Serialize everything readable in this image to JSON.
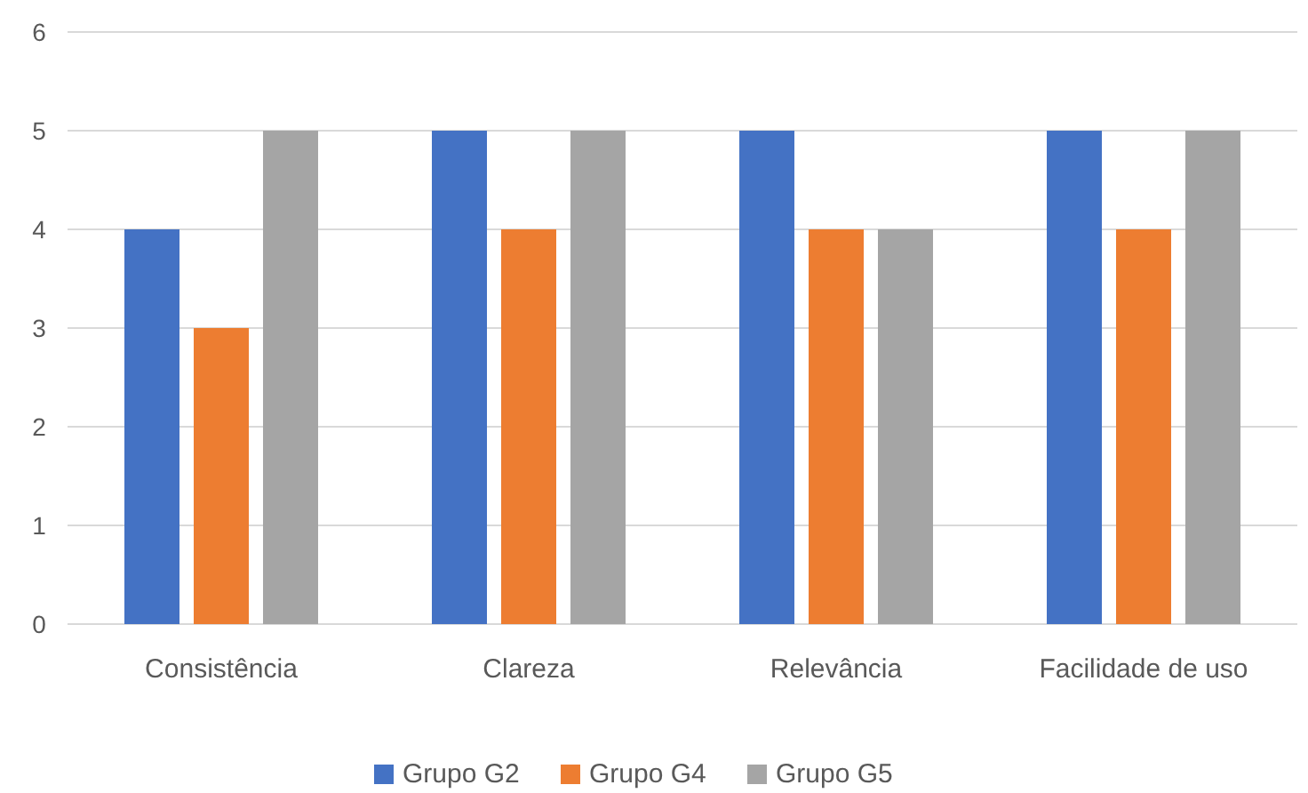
{
  "chart_data": {
    "type": "bar",
    "categories": [
      "Consistência",
      "Clareza",
      "Relevância",
      "Facilidade de uso"
    ],
    "series": [
      {
        "name": "Grupo G2",
        "color": "#4472c4",
        "values": [
          4,
          5,
          5,
          5
        ]
      },
      {
        "name": "Grupo G4",
        "color": "#ed7d31",
        "values": [
          3,
          4,
          4,
          4
        ]
      },
      {
        "name": "Grupo G5",
        "color": "#a5a5a5",
        "values": [
          5,
          5,
          4,
          5
        ]
      }
    ],
    "ylim": [
      0,
      6
    ],
    "yticks": [
      0,
      1,
      2,
      3,
      4,
      5,
      6
    ],
    "grid": "y",
    "legend": "bottom"
  }
}
